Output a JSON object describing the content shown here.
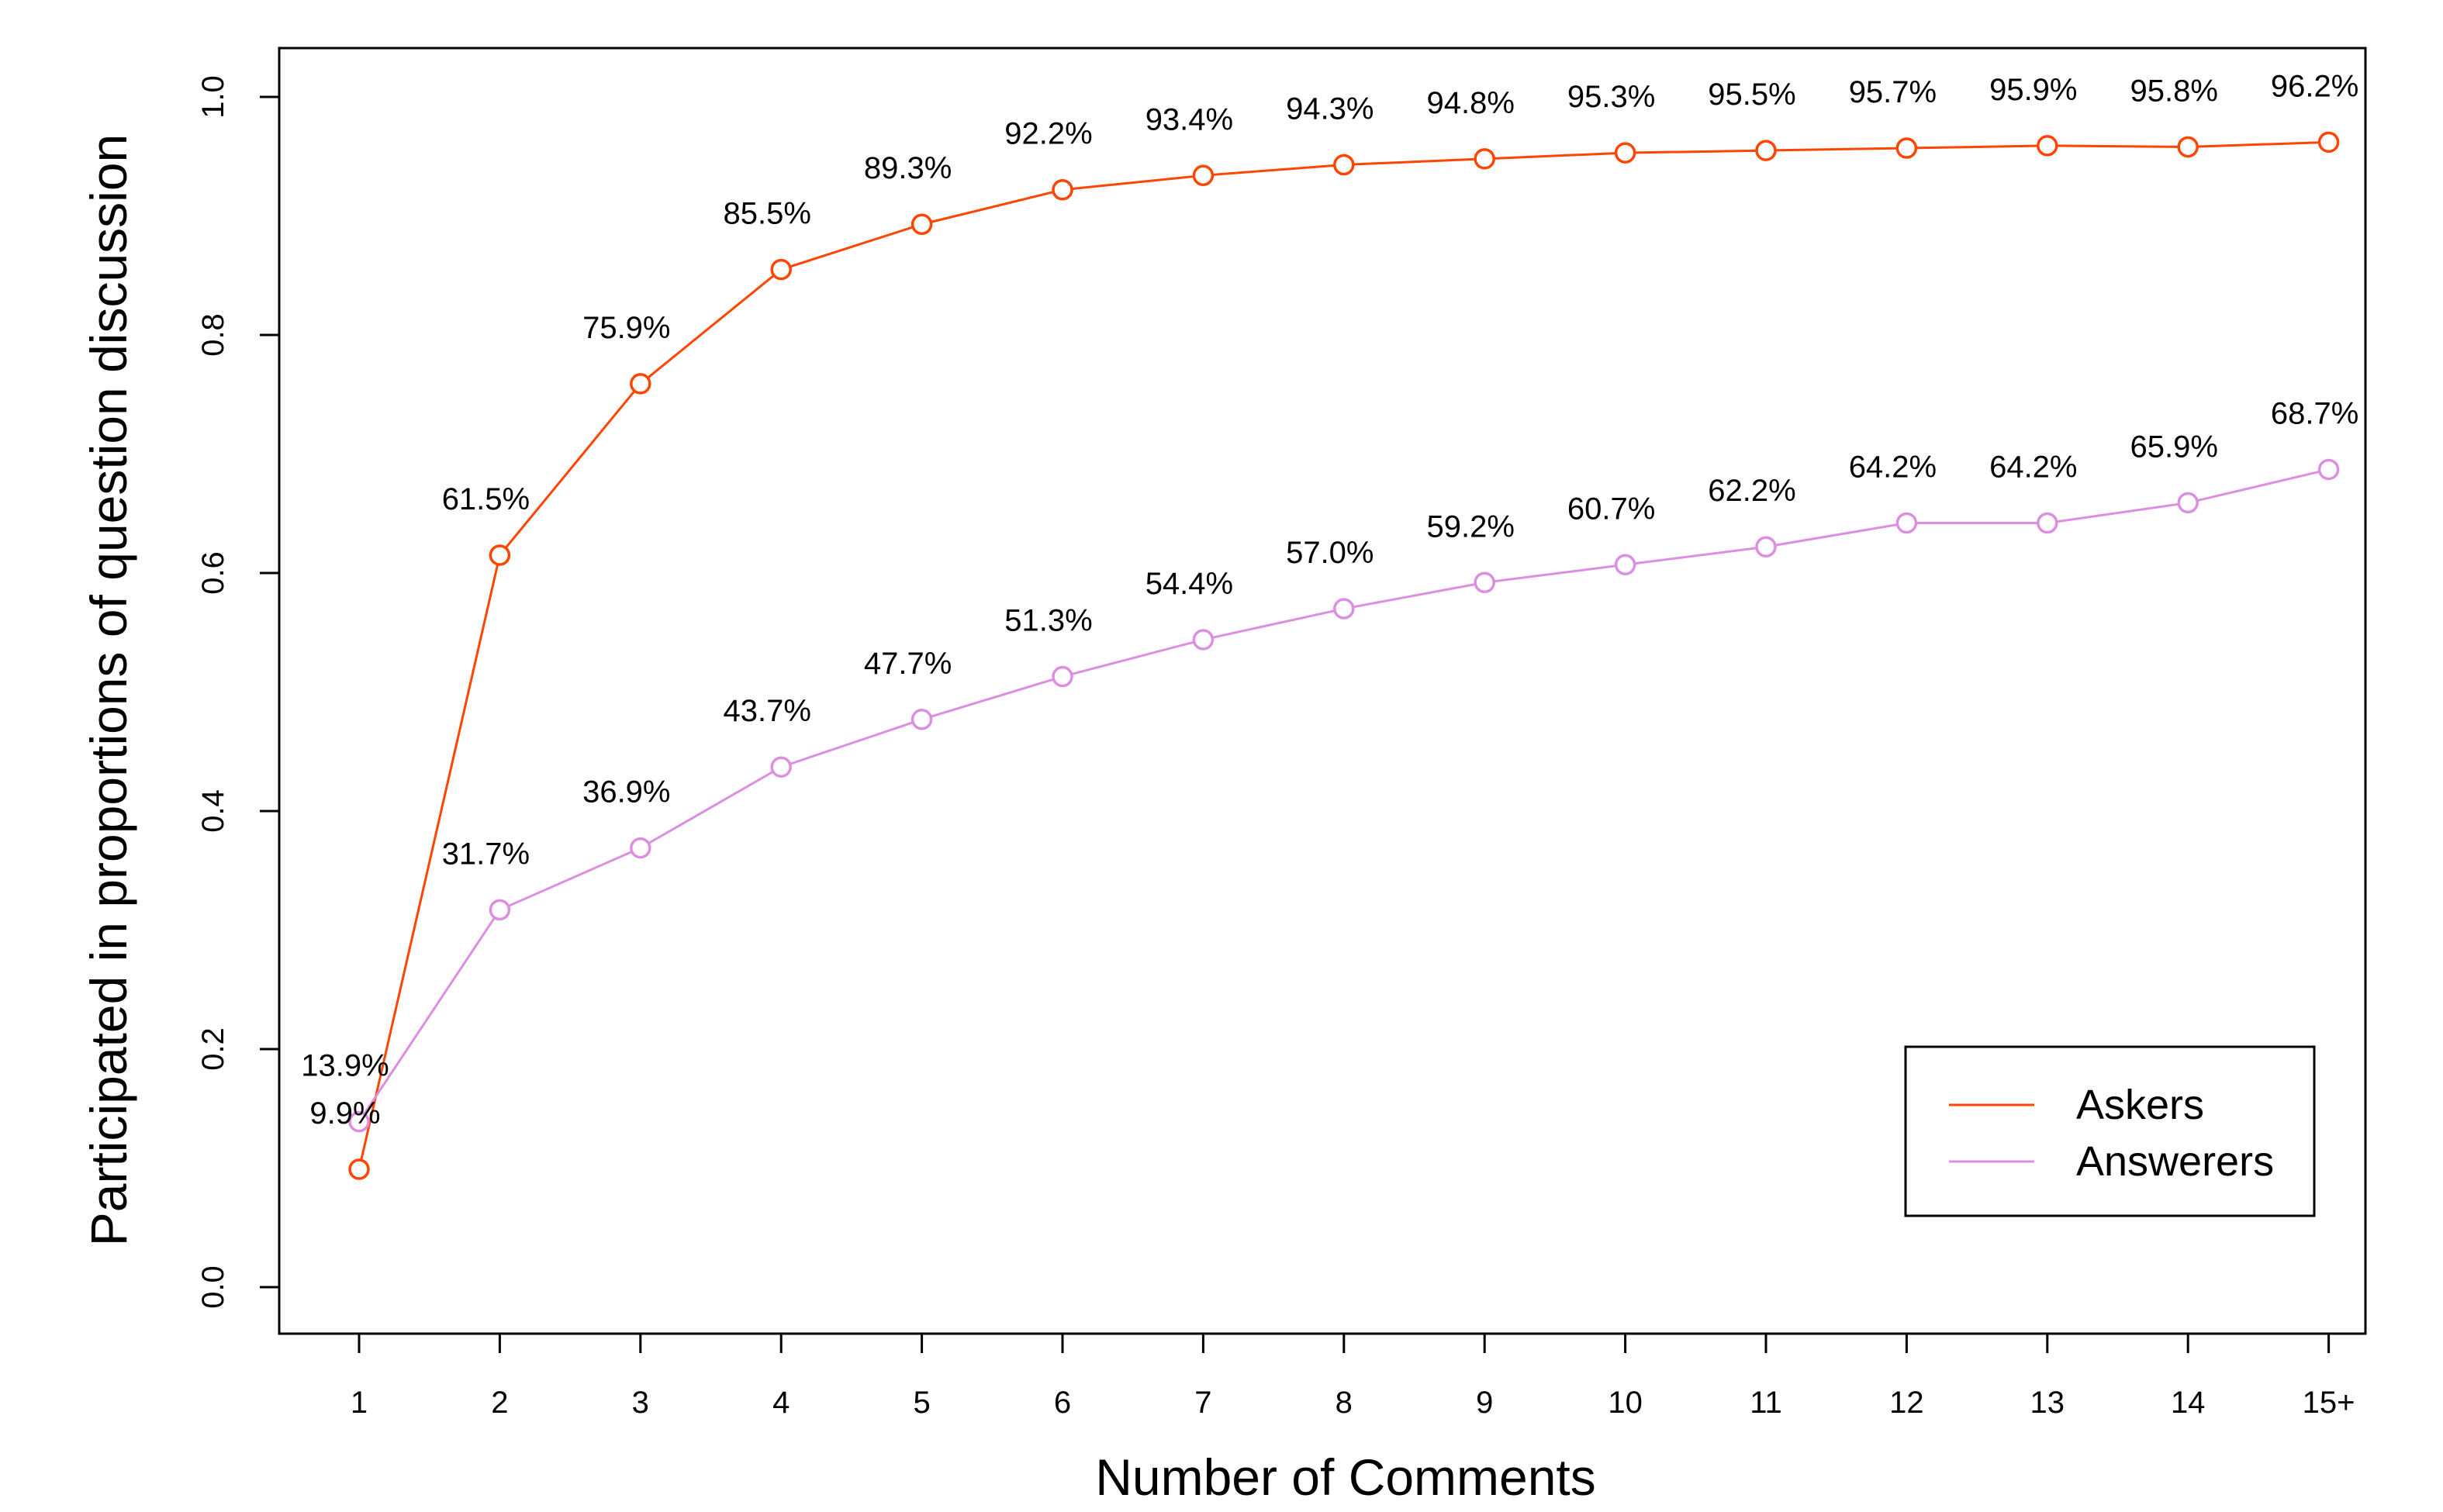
{
  "chart_data": {
    "type": "line",
    "title": "",
    "xlabel": "Number of Comments",
    "ylabel": "Participated in proportions of question discussion",
    "categories": [
      "1",
      "2",
      "3",
      "4",
      "5",
      "6",
      "7",
      "8",
      "9",
      "10",
      "11",
      "12",
      "13",
      "14",
      "15+"
    ],
    "ylim": [
      0,
      1.0
    ],
    "yticks": [
      "0.0",
      "0.2",
      "0.4",
      "0.6",
      "0.8",
      "1.0"
    ],
    "grid": false,
    "legend_position": "bottom-right",
    "series": [
      {
        "name": "Askers",
        "color": "#ff4500",
        "values": [
          0.099,
          0.615,
          0.759,
          0.855,
          0.893,
          0.922,
          0.934,
          0.943,
          0.948,
          0.953,
          0.955,
          0.957,
          0.959,
          0.958,
          0.962
        ],
        "labels": [
          "9.9%",
          "61.5%",
          "75.9%",
          "85.5%",
          "89.3%",
          "92.2%",
          "93.4%",
          "94.3%",
          "94.8%",
          "95.3%",
          "95.5%",
          "95.7%",
          "95.9%",
          "95.8%",
          "96.2%"
        ]
      },
      {
        "name": "Answerers",
        "color": "#dc8fe0",
        "values": [
          0.139,
          0.317,
          0.369,
          0.437,
          0.477,
          0.513,
          0.544,
          0.57,
          0.592,
          0.607,
          0.622,
          0.642,
          0.642,
          0.659,
          0.687
        ],
        "labels": [
          "13.9%",
          "31.7%",
          "36.9%",
          "43.7%",
          "47.7%",
          "51.3%",
          "54.4%",
          "57.0%",
          "59.2%",
          "60.7%",
          "62.2%",
          "64.2%",
          "64.2%",
          "65.9%",
          "68.7%"
        ]
      }
    ]
  }
}
